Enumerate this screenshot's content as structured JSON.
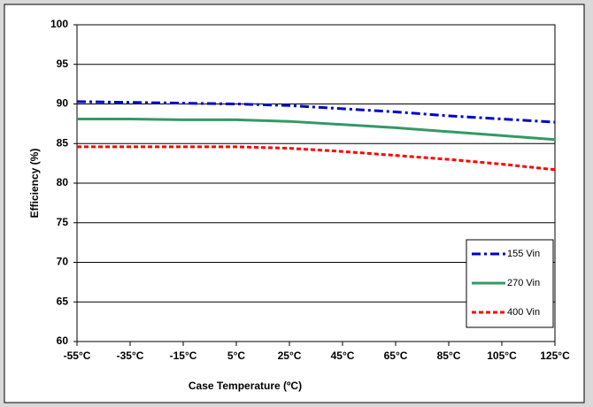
{
  "chart_data": {
    "type": "line",
    "xlabel": "Case Temperature (ºC)",
    "ylabel": "Efficiency (%)",
    "x": [
      -55,
      -35,
      -15,
      5,
      25,
      45,
      65,
      85,
      105,
      125
    ],
    "series": [
      {
        "name": "155 Vin",
        "color": "#0000cc",
        "style": "dashdot",
        "values": [
          90.3,
          90.2,
          90.1,
          90.0,
          89.8,
          89.4,
          89.0,
          88.5,
          88.1,
          87.7
        ]
      },
      {
        "name": "270 Vin",
        "color": "#339966",
        "style": "solid",
        "values": [
          88.1,
          88.1,
          88.0,
          88.0,
          87.8,
          87.4,
          87.0,
          86.5,
          86.0,
          85.5
        ]
      },
      {
        "name": "400 Vin",
        "color": "#ff0000",
        "style": "dashed",
        "values": [
          84.6,
          84.6,
          84.6,
          84.6,
          84.4,
          84.0,
          83.5,
          83.0,
          82.4,
          81.7
        ]
      }
    ],
    "xlim": [
      -55,
      125
    ],
    "xticks": [
      {
        "value": -55,
        "label": "-55°C"
      },
      {
        "value": -35,
        "label": "-35°C"
      },
      {
        "value": -15,
        "label": "-15°C"
      },
      {
        "value": 5,
        "label": "5°C"
      },
      {
        "value": 25,
        "label": "25°C"
      },
      {
        "value": 45,
        "label": "45°C"
      },
      {
        "value": 65,
        "label": "65°C"
      },
      {
        "value": 85,
        "label": "85°C"
      },
      {
        "value": 105,
        "label": "105°C"
      },
      {
        "value": 125,
        "label": "125°C"
      }
    ],
    "ylim": [
      60,
      100
    ],
    "yticks": [
      60,
      65,
      70,
      75,
      80,
      85,
      90,
      95,
      100
    ],
    "grid": true,
    "legend": "lower right"
  }
}
